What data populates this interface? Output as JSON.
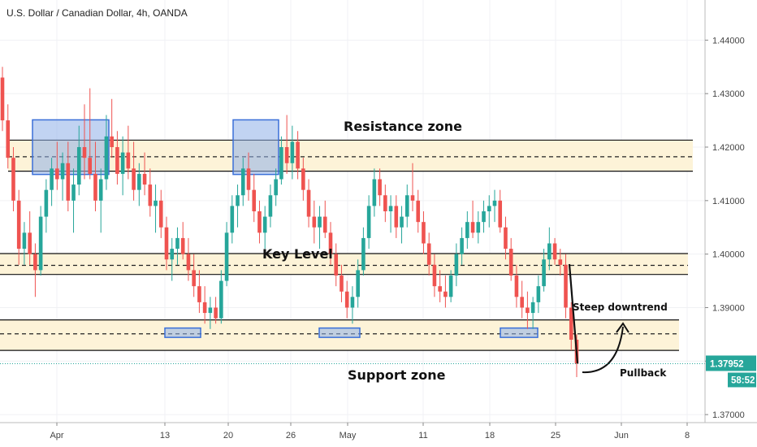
{
  "chart_data": {
    "type": "candlestick",
    "title": "U.S. Dollar / Canadian Dollar, 4h, OANDA",
    "y_axis": {
      "ylim": [
        1.3685,
        1.4475
      ],
      "ticks": [
        "1.44000",
        "1.43000",
        "1.42000",
        "1.41000",
        "1.40000",
        "1.39000",
        "1.38000",
        "1.37000"
      ],
      "tick_values": [
        1.44,
        1.43,
        1.42,
        1.41,
        1.4,
        1.39,
        1.38,
        1.37
      ],
      "side": "right"
    },
    "x_axis": {
      "ticks": [
        "Apr",
        "13",
        "20",
        "26",
        "May",
        "11",
        "18",
        "25",
        "Jun",
        "8"
      ]
    },
    "price": {
      "last": "1.37952",
      "countdown": "58:52",
      "value": 1.37952,
      "color": "#26a69a"
    },
    "colors": {
      "up": "#26a69a",
      "down": "#ef5350",
      "zone_fill": "#fdf3d8",
      "box_fill": "#8eaee8",
      "box_stroke": "#3a6fd8"
    },
    "zones": [
      {
        "name": "resistance",
        "label": "Resistance zone",
        "top": 1.4213,
        "mid": 1.4182,
        "bottom": 1.4155
      },
      {
        "name": "key",
        "label": "Key Level",
        "top": 1.4001,
        "mid": 1.3979,
        "bottom": 1.3962
      },
      {
        "name": "support",
        "label": "Support zone",
        "top": 1.3877,
        "mid": 1.3851,
        "bottom": 1.382
      }
    ],
    "boxes": [
      {
        "zone": "resistance",
        "x_from": "Mar 26",
        "x_to": "Apr 5"
      },
      {
        "zone": "resistance",
        "x_from": "Apr 20",
        "x_to": "Apr 24"
      },
      {
        "zone": "support",
        "x_from": "Apr 13",
        "x_to": "Apr 16"
      },
      {
        "zone": "support",
        "x_from": "Apr 28",
        "x_to": "May 1"
      },
      {
        "zone": "support",
        "x_from": "May 19",
        "x_to": "May 22"
      }
    ],
    "annotations": [
      {
        "name": "steep-downtrend",
        "text": "Steep downtrend"
      },
      {
        "name": "pullback",
        "text": "Pullback"
      }
    ],
    "candles_ohlc": [
      [
        1.433,
        1.435,
        1.423,
        1.425
      ],
      [
        1.425,
        1.428,
        1.416,
        1.418
      ],
      [
        1.418,
        1.42,
        1.408,
        1.41
      ],
      [
        1.41,
        1.412,
        1.398,
        1.401
      ],
      [
        1.401,
        1.406,
        1.398,
        1.404
      ],
      [
        1.404,
        1.408,
        1.398,
        1.4
      ],
      [
        1.4,
        1.402,
        1.392,
        1.397
      ],
      [
        1.397,
        1.409,
        1.396,
        1.407
      ],
      [
        1.407,
        1.414,
        1.404,
        1.412
      ],
      [
        1.412,
        1.418,
        1.409,
        1.416
      ],
      [
        1.416,
        1.421,
        1.412,
        1.414
      ],
      [
        1.414,
        1.419,
        1.41,
        1.417
      ],
      [
        1.417,
        1.421,
        1.408,
        1.41
      ],
      [
        1.41,
        1.416,
        1.404,
        1.413
      ],
      [
        1.413,
        1.424,
        1.411,
        1.42
      ],
      [
        1.42,
        1.428,
        1.414,
        1.418
      ],
      [
        1.418,
        1.431,
        1.414,
        1.415
      ],
      [
        1.415,
        1.421,
        1.408,
        1.41
      ],
      [
        1.41,
        1.416,
        1.404,
        1.414
      ],
      [
        1.414,
        1.426,
        1.412,
        1.422
      ],
      [
        1.422,
        1.429,
        1.418,
        1.42
      ],
      [
        1.42,
        1.423,
        1.413,
        1.415
      ],
      [
        1.415,
        1.422,
        1.411,
        1.419
      ],
      [
        1.419,
        1.424,
        1.414,
        1.416
      ],
      [
        1.416,
        1.421,
        1.41,
        1.412
      ],
      [
        1.412,
        1.417,
        1.409,
        1.415
      ],
      [
        1.415,
        1.419,
        1.411,
        1.413
      ],
      [
        1.413,
        1.416,
        1.407,
        1.409
      ],
      [
        1.409,
        1.413,
        1.404,
        1.41
      ],
      [
        1.41,
        1.412,
        1.403,
        1.405
      ],
      [
        1.405,
        1.407,
        1.397,
        1.399
      ],
      [
        1.399,
        1.403,
        1.395,
        1.401
      ],
      [
        1.401,
        1.405,
        1.398,
        1.403
      ],
      [
        1.403,
        1.406,
        1.399,
        1.4
      ],
      [
        1.4,
        1.403,
        1.395,
        1.397
      ],
      [
        1.397,
        1.4,
        1.392,
        1.394
      ],
      [
        1.394,
        1.397,
        1.389,
        1.391
      ],
      [
        1.391,
        1.394,
        1.387,
        1.389
      ],
      [
        1.389,
        1.392,
        1.386,
        1.39
      ],
      [
        1.39,
        1.392,
        1.387,
        1.388
      ],
      [
        1.388,
        1.397,
        1.387,
        1.395
      ],
      [
        1.395,
        1.406,
        1.394,
        1.404
      ],
      [
        1.404,
        1.411,
        1.402,
        1.409
      ],
      [
        1.409,
        1.413,
        1.405,
        1.411
      ],
      [
        1.411,
        1.418,
        1.409,
        1.416
      ],
      [
        1.416,
        1.419,
        1.41,
        1.412
      ],
      [
        1.412,
        1.415,
        1.406,
        1.408
      ],
      [
        1.408,
        1.41,
        1.402,
        1.404
      ],
      [
        1.404,
        1.409,
        1.401,
        1.407
      ],
      [
        1.407,
        1.413,
        1.405,
        1.411
      ],
      [
        1.411,
        1.416,
        1.409,
        1.414
      ],
      [
        1.414,
        1.422,
        1.413,
        1.42
      ],
      [
        1.42,
        1.426,
        1.415,
        1.417
      ],
      [
        1.417,
        1.424,
        1.414,
        1.421
      ],
      [
        1.421,
        1.423,
        1.414,
        1.416
      ],
      [
        1.416,
        1.418,
        1.41,
        1.412
      ],
      [
        1.412,
        1.414,
        1.405,
        1.407
      ],
      [
        1.407,
        1.41,
        1.402,
        1.405
      ],
      [
        1.405,
        1.409,
        1.401,
        1.407
      ],
      [
        1.407,
        1.41,
        1.403,
        1.404
      ],
      [
        1.404,
        1.406,
        1.398,
        1.4
      ],
      [
        1.4,
        1.402,
        1.394,
        1.396
      ],
      [
        1.396,
        1.398,
        1.391,
        1.393
      ],
      [
        1.393,
        1.395,
        1.388,
        1.39
      ],
      [
        1.39,
        1.394,
        1.387,
        1.392
      ],
      [
        1.392,
        1.399,
        1.39,
        1.397
      ],
      [
        1.397,
        1.405,
        1.396,
        1.403
      ],
      [
        1.403,
        1.411,
        1.401,
        1.409
      ],
      [
        1.409,
        1.416,
        1.407,
        1.414
      ],
      [
        1.414,
        1.416,
        1.409,
        1.411
      ],
      [
        1.411,
        1.413,
        1.406,
        1.408
      ],
      [
        1.408,
        1.411,
        1.404,
        1.409
      ],
      [
        1.409,
        1.411,
        1.403,
        1.405
      ],
      [
        1.405,
        1.409,
        1.402,
        1.407
      ],
      [
        1.407,
        1.413,
        1.405,
        1.411
      ],
      [
        1.411,
        1.417,
        1.408,
        1.41
      ],
      [
        1.41,
        1.412,
        1.404,
        1.406
      ],
      [
        1.406,
        1.408,
        1.4,
        1.402
      ],
      [
        1.402,
        1.404,
        1.396,
        1.398
      ],
      [
        1.398,
        1.4,
        1.392,
        1.394
      ],
      [
        1.394,
        1.397,
        1.391,
        1.393
      ],
      [
        1.393,
        1.396,
        1.39,
        1.392
      ],
      [
        1.392,
        1.397,
        1.391,
        1.396
      ],
      [
        1.396,
        1.402,
        1.394,
        1.4
      ],
      [
        1.4,
        1.405,
        1.398,
        1.403
      ],
      [
        1.403,
        1.408,
        1.401,
        1.406
      ],
      [
        1.406,
        1.41,
        1.403,
        1.404
      ],
      [
        1.404,
        1.408,
        1.402,
        1.406
      ],
      [
        1.406,
        1.41,
        1.404,
        1.408
      ],
      [
        1.408,
        1.411,
        1.405,
        1.409
      ],
      [
        1.409,
        1.412,
        1.406,
        1.41
      ],
      [
        1.41,
        1.412,
        1.404,
        1.405
      ],
      [
        1.405,
        1.407,
        1.399,
        1.401
      ],
      [
        1.401,
        1.403,
        1.395,
        1.396
      ],
      [
        1.396,
        1.398,
        1.39,
        1.392
      ],
      [
        1.392,
        1.395,
        1.388,
        1.39
      ],
      [
        1.39,
        1.393,
        1.386,
        1.389
      ],
      [
        1.389,
        1.392,
        1.386,
        1.391
      ],
      [
        1.391,
        1.396,
        1.389,
        1.394
      ],
      [
        1.394,
        1.401,
        1.393,
        1.399
      ],
      [
        1.399,
        1.405,
        1.397,
        1.402
      ],
      [
        1.402,
        1.403,
        1.398,
        1.399
      ],
      [
        1.399,
        1.401,
        1.396,
        1.398
      ],
      [
        1.398,
        1.4,
        1.388,
        1.39
      ],
      [
        1.39,
        1.391,
        1.382,
        1.384
      ],
      [
        1.384,
        1.385,
        1.377,
        1.3795
      ]
    ]
  }
}
